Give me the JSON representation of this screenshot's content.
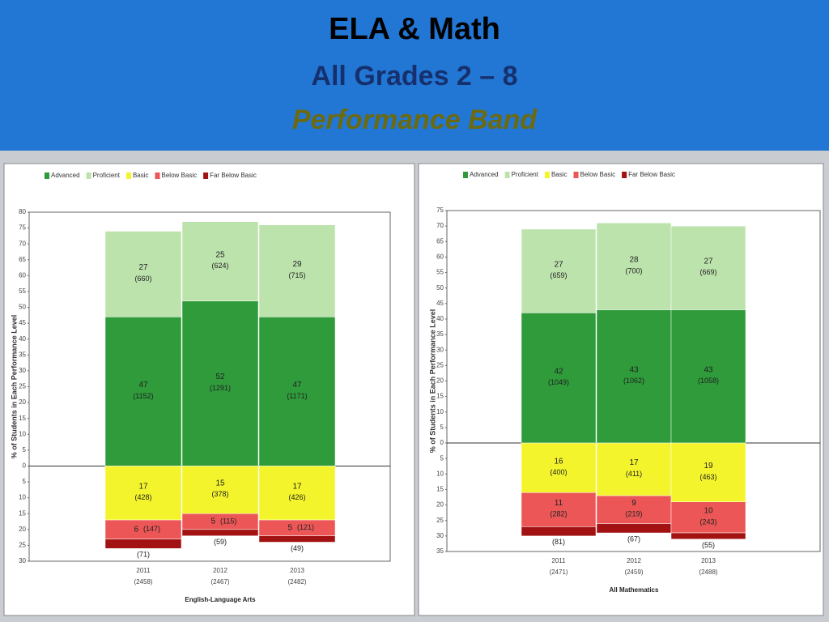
{
  "slide": {
    "title": "ELA & Math",
    "subtitle": "All Grades 2 – 8",
    "heading": "Performance Band"
  },
  "chart_data": [
    {
      "type": "diverging-stacked-bar",
      "x_label": "English-Language Arts",
      "y_label": "% of Students in Each Performance Level",
      "categories": [
        "2011",
        "2012",
        "2013"
      ],
      "category_notes": [
        "(2458)",
        "(2467)",
        "(2482)"
      ],
      "ylim": [
        -30,
        80
      ],
      "yticks": [
        {
          "value": -30,
          "label": "30"
        },
        {
          "value": -25,
          "label": "25"
        },
        {
          "value": -20,
          "label": "20"
        },
        {
          "value": -15,
          "label": "15"
        },
        {
          "value": -10,
          "label": "10"
        },
        {
          "value": -5,
          "label": "5"
        },
        0,
        5,
        10,
        15,
        20,
        25,
        30,
        35,
        40,
        45,
        50,
        55,
        60,
        65,
        70,
        75,
        80
      ],
      "series": [
        {
          "name": "Advanced",
          "color": "#2f9b3b",
          "values": [
            47,
            52,
            47
          ],
          "count_labels": [
            "(1152)",
            "(1291)",
            "(1171)"
          ]
        },
        {
          "name": "Proficient",
          "color": "#bde3ad",
          "values": [
            27,
            25,
            29
          ],
          "count_labels": [
            "(660)",
            "(624)",
            "(715)"
          ]
        },
        {
          "name": "Basic",
          "color": "#f4f42c",
          "values": [
            -17,
            -15,
            -17
          ],
          "value_labels": [
            "17",
            "15",
            "17"
          ],
          "count_labels": [
            "(428)",
            "(378)",
            "(426)"
          ]
        },
        {
          "name": "Below Basic",
          "color": "#ec5656",
          "values": [
            -6,
            -5,
            -5
          ],
          "value_labels": [
            "6",
            "5",
            "5"
          ],
          "count_labels": [
            "(147)",
            "(115)",
            "(121)"
          ]
        },
        {
          "name": "Far Below Basic",
          "color": "#a31212",
          "values": [
            -3,
            -2,
            -2
          ],
          "count_labels": [
            "(71)",
            "(59)",
            "(49)"
          ]
        }
      ]
    },
    {
      "type": "diverging-stacked-bar",
      "x_label": "All Mathematics",
      "y_label": "% of Students in Each Performance Level",
      "categories": [
        "2011",
        "2012",
        "2013"
      ],
      "category_notes": [
        "(2471)",
        "(2459)",
        "(2488)"
      ],
      "ylim": [
        -35,
        75
      ],
      "yticks": [
        {
          "value": -35,
          "label": "35"
        },
        {
          "value": -30,
          "label": "30"
        },
        {
          "value": -25,
          "label": "25"
        },
        {
          "value": -20,
          "label": "20"
        },
        {
          "value": -15,
          "label": "15"
        },
        {
          "value": -10,
          "label": "10"
        },
        {
          "value": -5,
          "label": "5"
        },
        0,
        5,
        10,
        15,
        20,
        25,
        30,
        35,
        40,
        45,
        50,
        55,
        60,
        65,
        70,
        75
      ],
      "series": [
        {
          "name": "Advanced",
          "color": "#2f9b3b",
          "values": [
            42,
            43,
            43
          ],
          "count_labels": [
            "(1049)",
            "(1062)",
            "(1058)"
          ]
        },
        {
          "name": "Proficient",
          "color": "#bde3ad",
          "values": [
            27,
            28,
            27
          ],
          "count_labels": [
            "(659)",
            "(700)",
            "(669)"
          ]
        },
        {
          "name": "Basic",
          "color": "#f4f42c",
          "values": [
            -16,
            -17,
            -19
          ],
          "value_labels": [
            "16",
            "17",
            "19"
          ],
          "count_labels": [
            "(400)",
            "(411)",
            "(463)"
          ]
        },
        {
          "name": "Below Basic",
          "color": "#ec5656",
          "values": [
            -11,
            -9,
            -10
          ],
          "value_labels": [
            "11",
            "9",
            "10"
          ],
          "count_labels": [
            "(282)",
            "(219)",
            "(243)"
          ]
        },
        {
          "name": "Far Below Basic",
          "color": "#a31212",
          "values": [
            -3,
            -3,
            -2
          ],
          "count_labels": [
            "(81)",
            "(67)",
            "(55)"
          ]
        }
      ]
    }
  ]
}
